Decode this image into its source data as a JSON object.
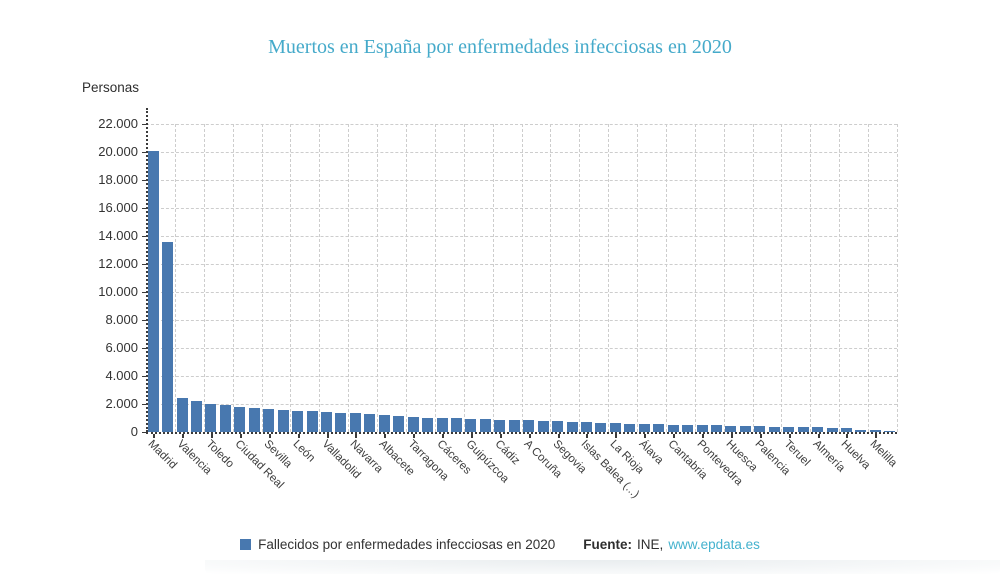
{
  "title": "Muertos en España por enfermedades infecciosas en 2020",
  "y_axis_title": "Personas",
  "legend": {
    "label": "Fallecidos por enfermedades infecciosas en 2020"
  },
  "source": {
    "prefix": "Fuente:",
    "name": "INE,",
    "link": "www.epdata.es"
  },
  "colors": {
    "bar": "#4878AF",
    "title": "#45AACA",
    "link": "#44B2CE",
    "grid": "#cdcdcd",
    "axis": "#3a3a3a",
    "text": "#333333"
  },
  "chart_data": {
    "type": "bar",
    "title": "Muertos en España por enfermedades infecciosas en 2020",
    "xlabel": "",
    "ylabel": "Personas",
    "ylim": [
      0,
      22000
    ],
    "ytick_step": 2000,
    "y_tick_labels": [
      "0",
      "2.000",
      "4.000",
      "6.000",
      "8.000",
      "10.000",
      "12.000",
      "14.000",
      "16.000",
      "18.000",
      "20.000",
      "22.000"
    ],
    "grid": true,
    "legend_position": "bottom",
    "legend_entries": [
      "Fallecidos por enfermedades infecciosas en 2020"
    ],
    "bar_count": 52,
    "label_every": 2,
    "tick_labels": [
      "Madrid",
      "Valencia",
      "Toledo",
      "Ciudad Real",
      "Sevilla",
      "León",
      "Valladolid",
      "Navarra",
      "Albacete",
      "Tarragona",
      "Cáceres",
      "Guipúzcoa",
      "Cádiz",
      "A Coruña",
      "Segovia",
      "Islas Balea (...)",
      "La Rioja",
      "Álava",
      "Cantabria",
      "Pontevedra",
      "Huesca",
      "Palencia",
      "Teruel",
      "Almería",
      "Huelva",
      "Melilla"
    ],
    "values": [
      20100,
      13600,
      2400,
      2250,
      2000,
      1930,
      1820,
      1720,
      1630,
      1580,
      1530,
      1500,
      1430,
      1380,
      1350,
      1290,
      1200,
      1140,
      1080,
      1020,
      1000,
      990,
      940,
      930,
      880,
      850,
      830,
      780,
      760,
      710,
      690,
      660,
      640,
      590,
      570,
      550,
      530,
      510,
      490,
      470,
      450,
      430,
      410,
      390,
      370,
      350,
      330,
      310,
      300,
      160,
      130,
      50
    ]
  }
}
